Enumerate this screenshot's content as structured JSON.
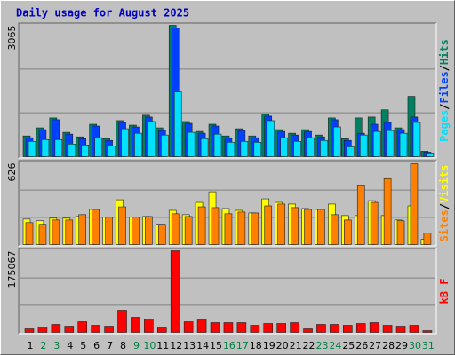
{
  "chart_data": [
    {
      "type": "bar",
      "title": "Daily usage for August 2025",
      "legend_separator": "/",
      "ylim": [
        0,
        3065
      ],
      "yticks": [
        3065
      ],
      "grid": true,
      "series": [
        {
          "name": "Hits",
          "color": "#008060",
          "values": [
            483,
            672,
            903,
            567,
            462,
            756,
            420,
            840,
            735,
            966,
            672,
            3065,
            819,
            588,
            756,
            483,
            651,
            483,
            987,
            630,
            546,
            630,
            504,
            903,
            420,
            903,
            924,
            1092,
            672,
            1407,
            126
          ]
        },
        {
          "name": "Files",
          "color": "#0040ff",
          "values": [
            441,
            630,
            861,
            525,
            420,
            714,
            378,
            798,
            693,
            924,
            609,
            3003,
            777,
            546,
            714,
            441,
            609,
            441,
            945,
            588,
            504,
            588,
            462,
            861,
            378,
            546,
            756,
            798,
            630,
            924,
            105
          ]
        },
        {
          "name": "Pages",
          "color": "#00e0ff",
          "values": [
            357,
            399,
            399,
            294,
            273,
            441,
            252,
            651,
            546,
            819,
            504,
            1512,
            567,
            420,
            525,
            336,
            357,
            336,
            840,
            441,
            357,
            441,
            378,
            693,
            231,
            504,
            588,
            609,
            546,
            798,
            84
          ]
        }
      ]
    },
    {
      "type": "bar",
      "legend_separator": "/",
      "ylim": [
        0,
        626
      ],
      "yticks": [
        626
      ],
      "grid": true,
      "series": [
        {
          "name": "Visits",
          "color": "#ffff00",
          "values": [
            195,
            182,
            202,
            202,
            215,
            269,
            209,
            343,
            209,
            215,
            155,
            262,
            229,
            323,
            404,
            276,
            262,
            242,
            350,
            323,
            310,
            276,
            269,
            310,
            222,
            222,
            336,
            222,
            188,
            296,
            40
          ]
        },
        {
          "name": "Sites",
          "color": "#ff8000",
          "values": [
            168,
            155,
            188,
            188,
            229,
            269,
            209,
            289,
            209,
            215,
            155,
            236,
            215,
            289,
            283,
            236,
            249,
            242,
            296,
            310,
            283,
            269,
            269,
            229,
            188,
            451,
            323,
            505,
            182,
            619,
            87
          ]
        }
      ]
    },
    {
      "type": "bar",
      "ylim": [
        0,
        175067
      ],
      "yticks": [
        175067
      ],
      "grid": true,
      "categories": [
        "1",
        "2",
        "3",
        "4",
        "5",
        "6",
        "7",
        "8",
        "9",
        "10",
        "11",
        "12",
        "13",
        "14",
        "15",
        "16",
        "17",
        "18",
        "19",
        "20",
        "21",
        "22",
        "23",
        "24",
        "25",
        "26",
        "27",
        "28",
        "29",
        "30",
        "31"
      ],
      "label_colors": [
        "#000000",
        "#008040",
        "#008040",
        "#000000",
        "#000000",
        "#000000",
        "#000000",
        "#000000",
        "#008040",
        "#008040",
        "#000000",
        "#000000",
        "#000000",
        "#000000",
        "#000000",
        "#008040",
        "#008040",
        "#000000",
        "#000000",
        "#000000",
        "#000000",
        "#000000",
        "#008040",
        "#008040",
        "#000000",
        "#000000",
        "#000000",
        "#000000",
        "#000000",
        "#008040",
        "#008040"
      ],
      "series": [
        {
          "name": "kB F",
          "color": "#ff0000",
          "values": [
            7612,
            11418,
            17127,
            13321,
            22836,
            15224,
            13321,
            47575,
            32351,
            28545,
            9515,
            175067,
            22836,
            26642,
            20933,
            20933,
            20933,
            15224,
            19030,
            19030,
            20933,
            7612,
            17127,
            17127,
            15224,
            19030,
            20933,
            15224,
            13321,
            15224,
            3806
          ]
        }
      ]
    }
  ]
}
